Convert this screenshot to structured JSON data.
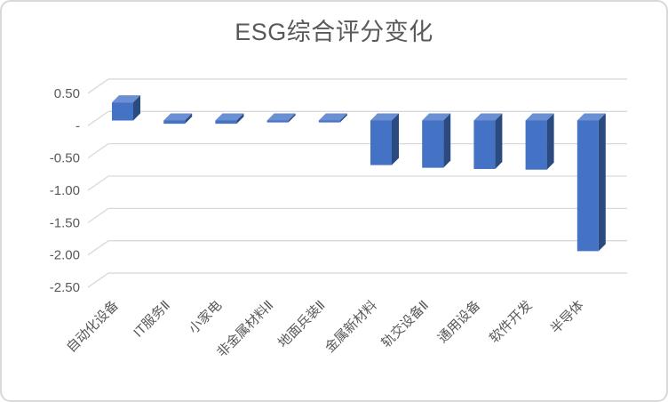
{
  "chart_data": {
    "type": "bar",
    "subtype": "3d-column",
    "title": "ESG综合评分变化",
    "categories": [
      "自动化设备",
      "IT服务Ⅱ",
      "小家电",
      "非金属材料Ⅱ",
      "地面兵装Ⅱ",
      "金属新材料",
      "轨交设备Ⅱ",
      "通用设备",
      "软件开发",
      "半导体"
    ],
    "values": [
      0.28,
      -0.05,
      -0.05,
      -0.03,
      -0.03,
      -0.69,
      -0.73,
      -0.75,
      -0.76,
      -2.02
    ],
    "series_name": "ESG综合评分变化",
    "xlabel": "",
    "ylabel": "",
    "ylim": [
      -2.5,
      0.5
    ],
    "y_ticks": [
      0.5,
      0,
      -0.5,
      -1.0,
      -1.5,
      -2.0,
      -2.5
    ],
    "y_tick_labels": [
      "0.50",
      "-",
      "-0.50",
      "-1.00",
      "-1.50",
      "-2.00",
      "-2.50"
    ],
    "grid": true,
    "legend": false,
    "colors": {
      "bar_front": "#4472C4",
      "bar_top": "#6A8FD3",
      "bar_side": "#2B4B80",
      "gridline": "#D9D9D9",
      "axis_text": "#595959",
      "title_text": "#595959",
      "frame_border": "#D9D9D9",
      "background": "#FFFFFF"
    }
  }
}
